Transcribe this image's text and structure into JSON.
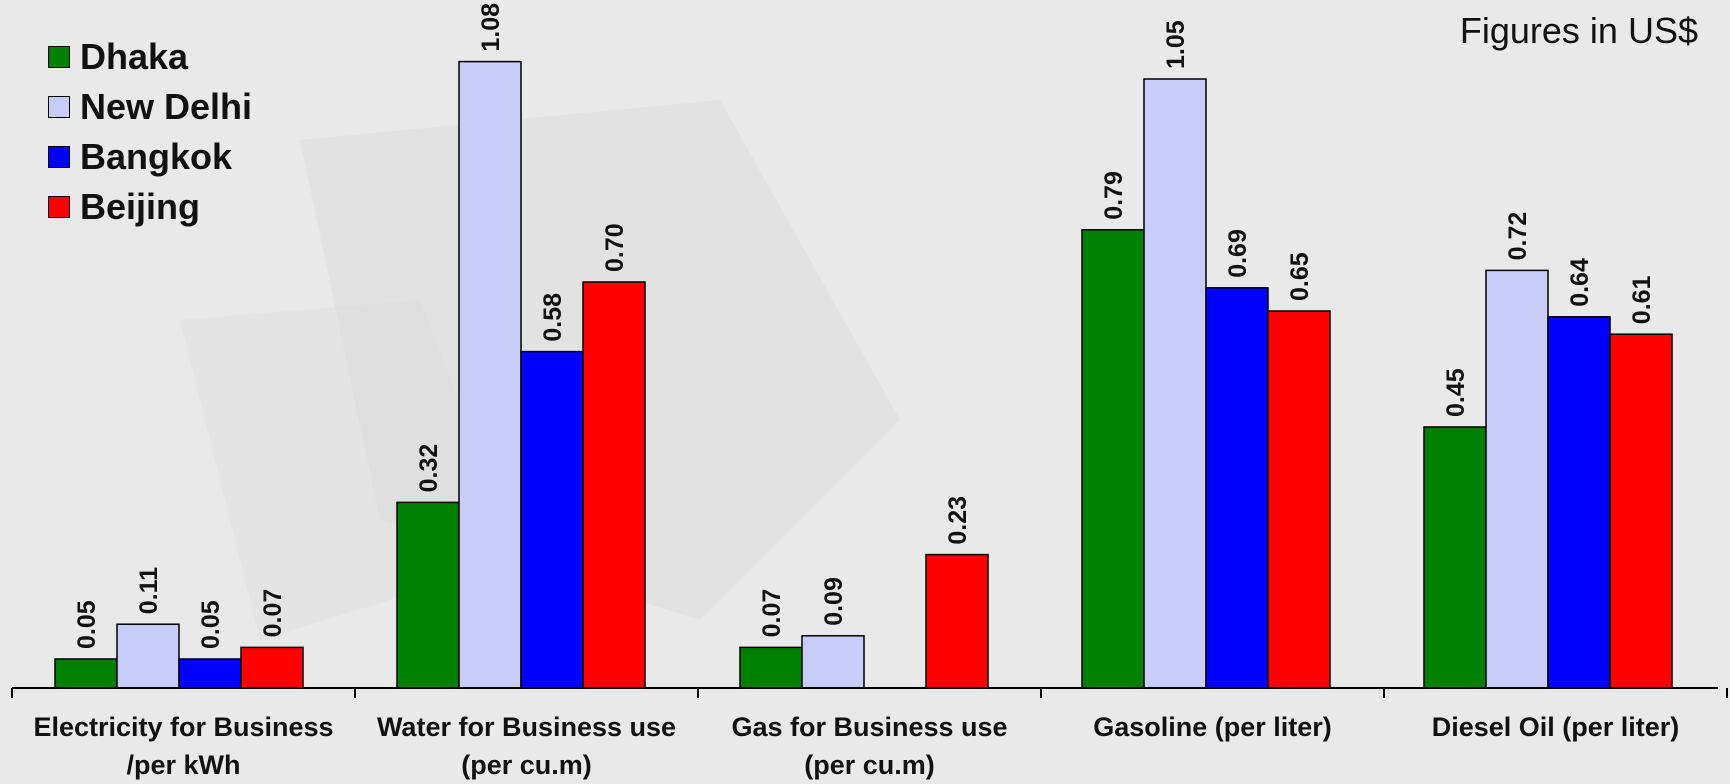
{
  "note": "Figures in US$",
  "colors": {
    "Dhaka": "#008000",
    "New Delhi": "#c8ccf8",
    "Bangkok": "#0000ff",
    "Beijing": "#ff0000"
  },
  "chart_data": {
    "type": "bar",
    "categories": [
      [
        "Electricity for Business",
        "/per kWh"
      ],
      [
        "Water for Business use",
        "(per cu.m)"
      ],
      [
        "Gas for Business use",
        "(per cu.m)"
      ],
      [
        "Gasoline (per liter)",
        ""
      ],
      [
        "Diesel Oil (per liter)",
        ""
      ]
    ],
    "series": [
      {
        "name": "Dhaka",
        "values": [
          0.05,
          0.32,
          0.07,
          0.79,
          0.45
        ],
        "labels": [
          "0.05",
          "0.32",
          "0.07",
          "0.79",
          "0.45"
        ]
      },
      {
        "name": "New Delhi",
        "values": [
          0.11,
          1.08,
          0.09,
          1.05,
          0.72
        ],
        "labels": [
          "0.11",
          "1.08",
          "0.09",
          "1.05",
          "0.72"
        ]
      },
      {
        "name": "Bangkok",
        "values": [
          0.05,
          0.58,
          null,
          0.69,
          0.64
        ],
        "labels": [
          "0.05",
          "0.58",
          "",
          "0.69",
          "0.64"
        ]
      },
      {
        "name": "Beijing",
        "values": [
          0.07,
          0.7,
          0.23,
          0.65,
          0.61
        ],
        "labels": [
          "0.07",
          "0.70",
          "0.23",
          "0.65",
          "0.61"
        ]
      }
    ],
    "ylim": [
      0,
      1.2
    ],
    "grid": false,
    "legend_position": "top-left"
  }
}
